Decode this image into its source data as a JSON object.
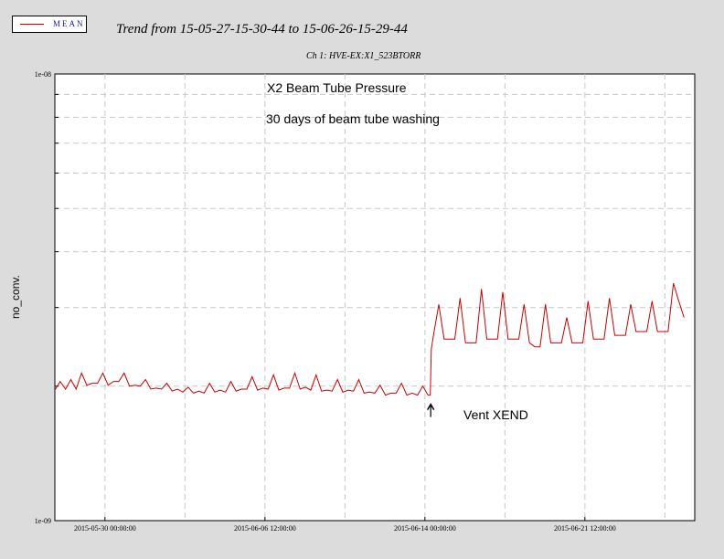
{
  "legend": {
    "label": "MEAN",
    "color": "#cc0000"
  },
  "title": "Trend from 15-05-27-15-30-44 to 15-06-26-15-29-44",
  "subtitle": "Ch 1: HVE-EX:X1_523BTORR",
  "chart_data": {
    "type": "line",
    "title": "Trend from 15-05-27-15-30-44 to 15-06-26-15-29-44",
    "subtitle": "Ch 1: HVE-EX:X1_523BTORR",
    "xlabel": "",
    "ylabel": "no_conv.",
    "yscale": "log",
    "ylim": [
      1e-09,
      1e-08
    ],
    "xlim_days": [
      0,
      30
    ],
    "y_tick_labels": [
      {
        "value": 1e-08,
        "label": "1e-08"
      },
      {
        "value": 1e-09,
        "label": "1e-09"
      }
    ],
    "x_tick_labels": [
      {
        "label": "2015-05-30 00:00:00",
        "days": 2.35
      },
      {
        "label": "2015-06-06 12:00:00",
        "days": 9.85
      },
      {
        "label": "2015-06-14 00:00:00",
        "days": 17.35
      },
      {
        "label": "2015-06-21 12:00:00",
        "days": 24.85
      }
    ],
    "grid": true,
    "legend_position": "top-left",
    "series": [
      {
        "name": "MEAN",
        "color": "#cc0000",
        "points": [
          [
            0.0,
            1.96e-09
          ],
          [
            0.25,
            2.05e-09
          ],
          [
            0.5,
            1.97e-09
          ],
          [
            0.75,
            2.07e-09
          ],
          [
            1.0,
            1.97e-09
          ],
          [
            1.25,
            2.14e-09
          ],
          [
            1.5,
            2.01e-09
          ],
          [
            1.75,
            2.03e-09
          ],
          [
            2.0,
            2.03e-09
          ],
          [
            2.25,
            2.14e-09
          ],
          [
            2.5,
            2.01e-09
          ],
          [
            2.75,
            2.05e-09
          ],
          [
            3.0,
            2.05e-09
          ],
          [
            3.25,
            2.14e-09
          ],
          [
            3.5,
            2e-09
          ],
          [
            3.75,
            2.01e-09
          ],
          [
            4.0,
            2e-09
          ],
          [
            4.25,
            2.07e-09
          ],
          [
            4.5,
            1.97e-09
          ],
          [
            4.75,
            1.98e-09
          ],
          [
            5.0,
            1.97e-09
          ],
          [
            5.25,
            2.03e-09
          ],
          [
            5.5,
            1.95e-09
          ],
          [
            5.75,
            1.97e-09
          ],
          [
            6.0,
            1.94e-09
          ],
          [
            6.25,
            1.99e-09
          ],
          [
            6.5,
            1.93e-09
          ],
          [
            6.75,
            1.95e-09
          ],
          [
            7.0,
            1.93e-09
          ],
          [
            7.25,
            2.03e-09
          ],
          [
            7.5,
            1.94e-09
          ],
          [
            7.75,
            1.96e-09
          ],
          [
            8.0,
            1.94e-09
          ],
          [
            8.25,
            2.05e-09
          ],
          [
            8.5,
            1.95e-09
          ],
          [
            8.75,
            1.97e-09
          ],
          [
            9.0,
            1.97e-09
          ],
          [
            9.25,
            2.1e-09
          ],
          [
            9.5,
            1.96e-09
          ],
          [
            9.75,
            1.98e-09
          ],
          [
            10.0,
            1.97e-09
          ],
          [
            10.25,
            2.12e-09
          ],
          [
            10.5,
            1.96e-09
          ],
          [
            10.75,
            1.98e-09
          ],
          [
            11.0,
            1.98e-09
          ],
          [
            11.25,
            2.14e-09
          ],
          [
            11.5,
            1.97e-09
          ],
          [
            11.75,
            1.99e-09
          ],
          [
            12.0,
            1.96e-09
          ],
          [
            12.25,
            2.12e-09
          ],
          [
            12.5,
            1.95e-09
          ],
          [
            12.75,
            1.96e-09
          ],
          [
            13.0,
            1.95e-09
          ],
          [
            13.25,
            2.07e-09
          ],
          [
            13.5,
            1.94e-09
          ],
          [
            13.75,
            1.96e-09
          ],
          [
            14.0,
            1.95e-09
          ],
          [
            14.25,
            2.07e-09
          ],
          [
            14.5,
            1.93e-09
          ],
          [
            14.75,
            1.94e-09
          ],
          [
            15.0,
            1.93e-09
          ],
          [
            15.25,
            2.01e-09
          ],
          [
            15.5,
            1.91e-09
          ],
          [
            15.75,
            1.93e-09
          ],
          [
            16.0,
            1.93e-09
          ],
          [
            16.25,
            2.03e-09
          ],
          [
            16.5,
            1.91e-09
          ],
          [
            16.75,
            1.93e-09
          ],
          [
            17.0,
            1.91e-09
          ],
          [
            17.25,
            2e-09
          ],
          [
            17.5,
            1.91e-09
          ],
          [
            17.6,
            1.91e-09
          ],
          [
            17.65,
            2.42e-09
          ],
          [
            17.75,
            2.6e-09
          ],
          [
            18.0,
            3.05e-09
          ],
          [
            18.25,
            2.55e-09
          ],
          [
            18.5,
            2.55e-09
          ],
          [
            18.75,
            2.55e-09
          ],
          [
            19.0,
            3.15e-09
          ],
          [
            19.25,
            2.5e-09
          ],
          [
            19.5,
            2.5e-09
          ],
          [
            19.75,
            2.5e-09
          ],
          [
            20.0,
            3.3e-09
          ],
          [
            20.25,
            2.55e-09
          ],
          [
            20.5,
            2.55e-09
          ],
          [
            20.75,
            2.55e-09
          ],
          [
            21.0,
            3.25e-09
          ],
          [
            21.25,
            2.55e-09
          ],
          [
            21.5,
            2.55e-09
          ],
          [
            21.75,
            2.55e-09
          ],
          [
            22.0,
            3.05e-09
          ],
          [
            22.25,
            2.5e-09
          ],
          [
            22.5,
            2.45e-09
          ],
          [
            22.75,
            2.45e-09
          ],
          [
            23.0,
            3.05e-09
          ],
          [
            23.25,
            2.5e-09
          ],
          [
            23.5,
            2.5e-09
          ],
          [
            23.75,
            2.5e-09
          ],
          [
            24.0,
            2.85e-09
          ],
          [
            24.25,
            2.5e-09
          ],
          [
            24.5,
            2.5e-09
          ],
          [
            24.75,
            2.5e-09
          ],
          [
            25.0,
            3.1e-09
          ],
          [
            25.25,
            2.55e-09
          ],
          [
            25.5,
            2.55e-09
          ],
          [
            25.75,
            2.55e-09
          ],
          [
            26.0,
            3.15e-09
          ],
          [
            26.25,
            2.6e-09
          ],
          [
            26.5,
            2.6e-09
          ],
          [
            26.75,
            2.6e-09
          ],
          [
            27.0,
            3.05e-09
          ],
          [
            27.25,
            2.65e-09
          ],
          [
            27.5,
            2.65e-09
          ],
          [
            27.75,
            2.65e-09
          ],
          [
            28.0,
            3.1e-09
          ],
          [
            28.25,
            2.65e-09
          ],
          [
            28.5,
            2.65e-09
          ],
          [
            28.75,
            2.65e-09
          ],
          [
            29.0,
            3.4e-09
          ],
          [
            29.25,
            3.1e-09
          ],
          [
            29.5,
            2.85e-09
          ]
        ]
      }
    ],
    "annotations": [
      {
        "text": "X2 Beam Tube Pressure"
      },
      {
        "text": "30 days of beam tube washing"
      },
      {
        "text": "Vent XEND",
        "x_days": 17.6,
        "y": 1.91e-09
      }
    ]
  }
}
